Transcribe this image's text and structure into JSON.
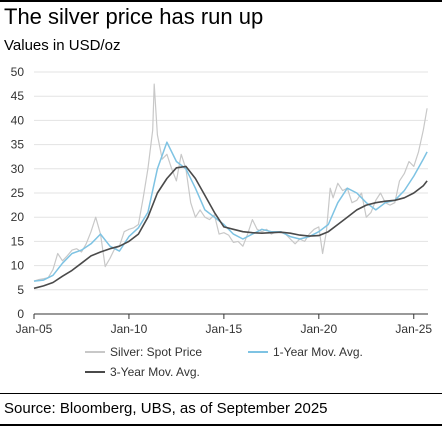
{
  "title": "The silver price has run up",
  "subtitle": "Values in USD/oz",
  "source": "Source: Bloomberg, UBS, as of September 2025",
  "colors": {
    "spot": "#c8c8c8",
    "ma1": "#7ec3e3",
    "ma3": "#4a4a4a",
    "grid": "#e3e3e3",
    "axis": "#333333"
  },
  "chart_data": {
    "type": "line",
    "ylim": [
      0,
      50
    ],
    "yticks": [
      0,
      5,
      10,
      15,
      20,
      25,
      30,
      35,
      40,
      45,
      50
    ],
    "xlim": [
      2005,
      2025.75
    ],
    "xticks": [
      {
        "value": 2005,
        "label": "Jan-05"
      },
      {
        "value": 2010,
        "label": "Jan-10"
      },
      {
        "value": 2015,
        "label": "Jan-15"
      },
      {
        "value": 2020,
        "label": "Jan-20"
      },
      {
        "value": 2025,
        "label": "Jan-25"
      }
    ],
    "series": [
      {
        "name": "Silver: Spot Price",
        "x": [
          2005.0,
          2005.25,
          2005.5,
          2005.75,
          2006.0,
          2006.25,
          2006.5,
          2006.75,
          2007.0,
          2007.25,
          2007.5,
          2007.75,
          2008.0,
          2008.25,
          2008.5,
          2008.75,
          2009.0,
          2009.25,
          2009.5,
          2009.75,
          2010.0,
          2010.25,
          2010.5,
          2010.75,
          2011.0,
          2011.25,
          2011.33,
          2011.5,
          2011.75,
          2012.0,
          2012.25,
          2012.5,
          2012.75,
          2013.0,
          2013.25,
          2013.5,
          2013.75,
          2014.0,
          2014.25,
          2014.5,
          2014.75,
          2015.0,
          2015.25,
          2015.5,
          2015.75,
          2016.0,
          2016.25,
          2016.5,
          2016.75,
          2017.0,
          2017.25,
          2017.5,
          2017.75,
          2018.0,
          2018.25,
          2018.5,
          2018.75,
          2019.0,
          2019.25,
          2019.5,
          2019.75,
          2020.0,
          2020.2,
          2020.4,
          2020.6,
          2020.75,
          2021.0,
          2021.25,
          2021.5,
          2021.75,
          2022.0,
          2022.25,
          2022.5,
          2022.75,
          2023.0,
          2023.25,
          2023.5,
          2023.75,
          2024.0,
          2024.25,
          2024.5,
          2024.75,
          2025.0,
          2025.25,
          2025.5,
          2025.7
        ],
        "values": [
          6.8,
          7.1,
          7.3,
          7.5,
          9.2,
          12.5,
          11.0,
          12.0,
          13.2,
          13.5,
          12.8,
          14.5,
          17.0,
          20.0,
          16.5,
          9.8,
          11.5,
          13.5,
          14.0,
          17.0,
          17.5,
          17.8,
          18.5,
          24.0,
          30.0,
          38.0,
          47.5,
          37.0,
          32.0,
          33.0,
          30.0,
          27.5,
          33.0,
          30.0,
          23.0,
          20.0,
          21.5,
          20.0,
          19.5,
          20.5,
          16.5,
          16.8,
          16.3,
          14.8,
          15.0,
          14.0,
          16.5,
          19.5,
          17.5,
          17.0,
          17.5,
          16.5,
          17.0,
          16.8,
          16.5,
          15.5,
          14.5,
          15.5,
          15.0,
          16.5,
          17.5,
          18.0,
          12.5,
          17.0,
          26.0,
          24.0,
          27.0,
          25.5,
          26.0,
          23.0,
          23.5,
          25.0,
          20.0,
          21.0,
          23.5,
          25.0,
          23.0,
          22.5,
          23.0,
          27.5,
          29.0,
          31.5,
          30.5,
          33.5,
          38.0,
          42.5
        ]
      },
      {
        "name": "1-Year Mov. Avg.",
        "x": [
          2005.0,
          2005.5,
          2006.0,
          2006.5,
          2007.0,
          2007.5,
          2008.0,
          2008.5,
          2009.0,
          2009.5,
          2010.0,
          2010.5,
          2011.0,
          2011.5,
          2012.0,
          2012.5,
          2013.0,
          2013.5,
          2014.0,
          2014.5,
          2015.0,
          2015.5,
          2016.0,
          2016.5,
          2017.0,
          2017.5,
          2018.0,
          2018.5,
          2019.0,
          2019.5,
          2020.0,
          2020.5,
          2021.0,
          2021.5,
          2022.0,
          2022.5,
          2023.0,
          2023.5,
          2024.0,
          2024.5,
          2025.0,
          2025.5,
          2025.7
        ],
        "values": [
          6.8,
          7.0,
          8.0,
          10.5,
          12.5,
          13.2,
          14.5,
          16.5,
          14.0,
          13.0,
          16.0,
          17.8,
          21.0,
          30.0,
          35.5,
          31.5,
          30.0,
          26.0,
          21.5,
          20.0,
          18.5,
          16.5,
          15.5,
          16.5,
          17.5,
          17.0,
          17.0,
          16.0,
          15.5,
          16.0,
          17.0,
          18.5,
          23.0,
          26.0,
          25.0,
          23.0,
          21.5,
          23.0,
          23.5,
          25.5,
          28.5,
          32.0,
          33.5
        ]
      },
      {
        "name": "3-Year Mov. Avg.",
        "x": [
          2005.0,
          2005.5,
          2006.0,
          2006.5,
          2007.0,
          2007.5,
          2008.0,
          2008.5,
          2009.0,
          2009.5,
          2010.0,
          2010.5,
          2011.0,
          2011.5,
          2012.0,
          2012.5,
          2013.0,
          2013.5,
          2014.0,
          2014.5,
          2015.0,
          2015.5,
          2016.0,
          2016.5,
          2017.0,
          2017.5,
          2018.0,
          2018.5,
          2019.0,
          2019.5,
          2020.0,
          2020.5,
          2021.0,
          2021.5,
          2022.0,
          2022.5,
          2023.0,
          2023.5,
          2024.0,
          2024.5,
          2025.0,
          2025.5,
          2025.7
        ],
        "values": [
          5.3,
          5.8,
          6.5,
          7.8,
          9.0,
          10.5,
          12.0,
          12.8,
          13.5,
          14.0,
          15.0,
          16.5,
          20.0,
          25.0,
          28.0,
          30.2,
          30.5,
          28.0,
          24.5,
          21.0,
          18.0,
          17.5,
          17.0,
          16.8,
          16.7,
          16.8,
          16.9,
          16.7,
          16.3,
          16.1,
          16.2,
          17.0,
          18.5,
          20.0,
          21.5,
          22.5,
          23.0,
          23.3,
          23.5,
          24.0,
          25.0,
          26.5,
          27.5
        ]
      }
    ]
  }
}
